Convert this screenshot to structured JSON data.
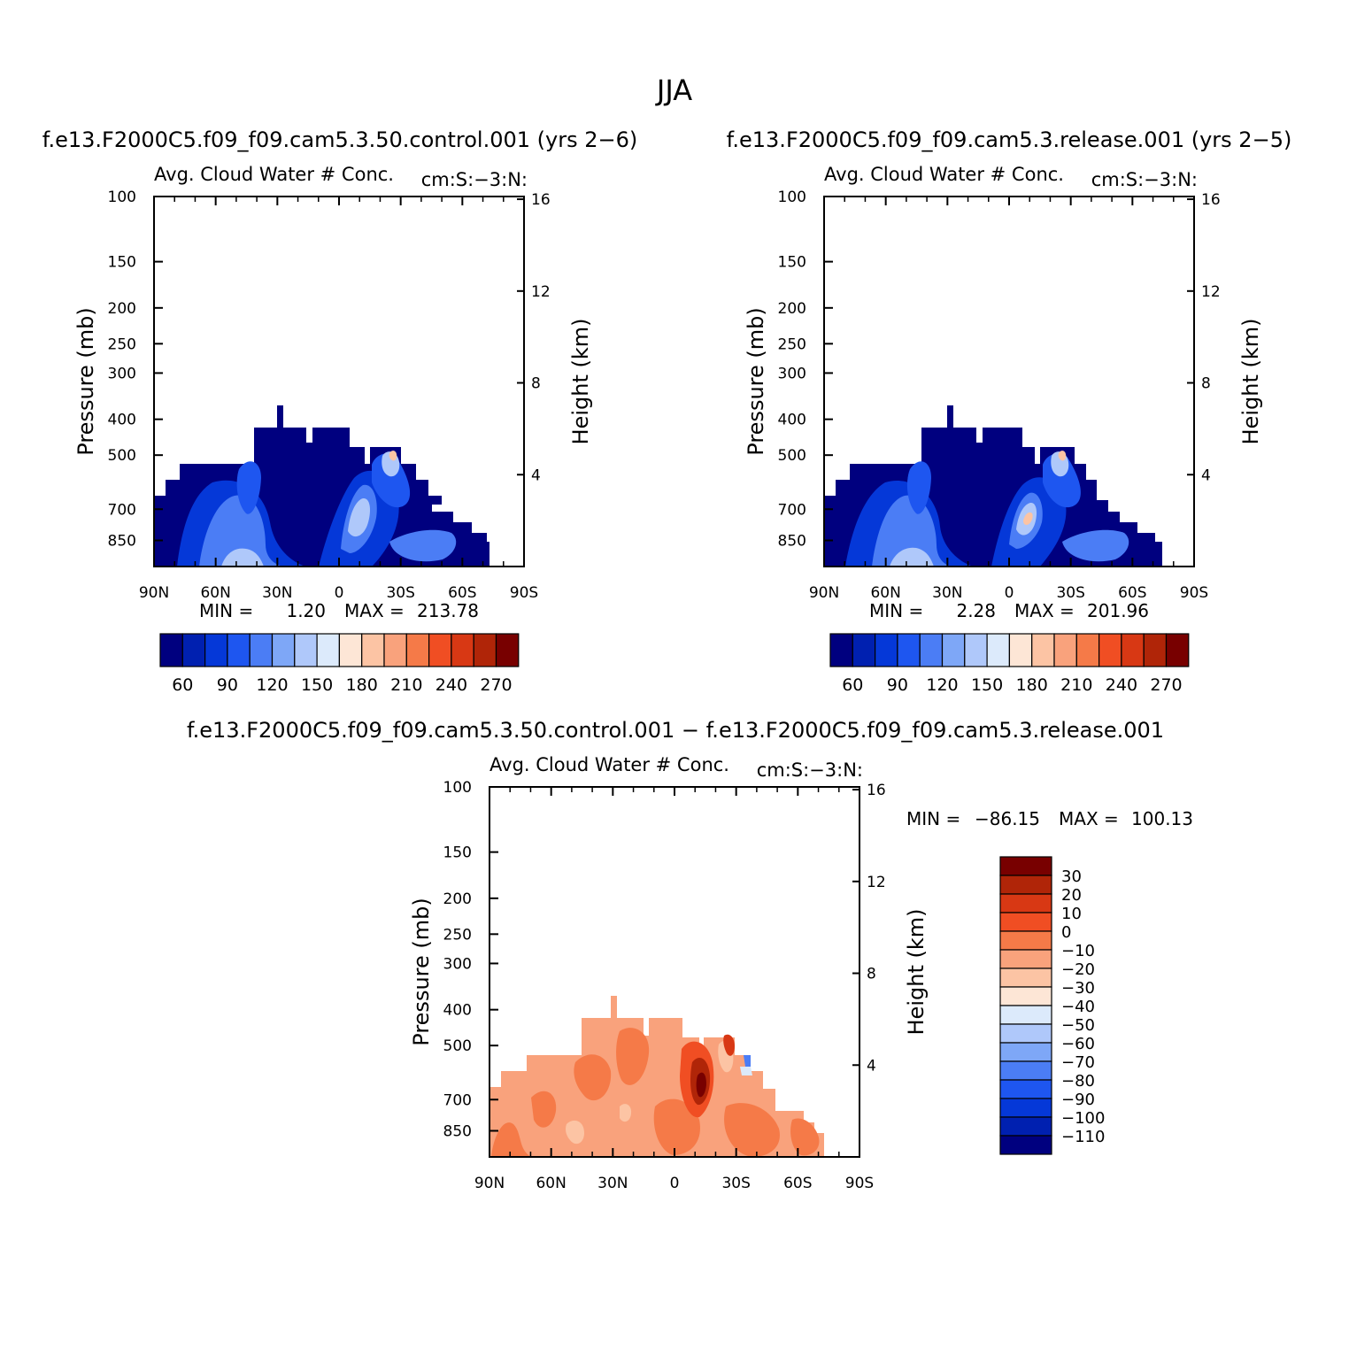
{
  "figure_title": "JJA",
  "panels": [
    {
      "case": "f.e13.F2000C5.f09_f09.cam5.3.50.control.001 (yrs 2−6)",
      "variable": "Avg. Cloud Water # Conc.",
      "units": "cm:S:−3:N:",
      "left_axis_label": "Pressure (mb)",
      "right_axis_label": "Height (km)",
      "stats": {
        "min_label": "MIN =",
        "min": "1.20",
        "max_label": "MAX =",
        "max": "213.78"
      }
    },
    {
      "case": "f.e13.F2000C5.f09_f09.cam5.3.release.001 (yrs 2−5)",
      "variable": "Avg. Cloud Water # Conc.",
      "units": "cm:S:−3:N:",
      "left_axis_label": "Pressure (mb)",
      "right_axis_label": "Height (km)",
      "stats": {
        "min_label": "MIN =",
        "min": "2.28",
        "max_label": "MAX =",
        "max": "201.96"
      }
    },
    {
      "case": "f.e13.F2000C5.f09_f09.cam5.3.50.control.001 − f.e13.F2000C5.f09_f09.cam5.3.release.001",
      "variable": "Avg. Cloud Water # Conc.",
      "units": "cm:S:−3:N:",
      "left_axis_label": "Pressure (mb)",
      "right_axis_label": "Height (km)",
      "stats": {
        "min_label": "MIN =",
        "min": "−86.15",
        "max_label": "MAX =",
        "max": "100.13"
      }
    }
  ],
  "chart_data": [
    {
      "type": "heatmap",
      "panel": "control",
      "x_ticks": [
        "90N",
        "60N",
        "30N",
        "0",
        "30S",
        "60S",
        "90S"
      ],
      "x_values": [
        90,
        60,
        30,
        0,
        -30,
        -60,
        -90
      ],
      "pressure_ticks": [
        100,
        150,
        200,
        250,
        300,
        400,
        500,
        700,
        850
      ],
      "pressure_range": [
        100,
        1000
      ],
      "pressure_scale": "log",
      "height_ticks": [
        16,
        12,
        8,
        4
      ],
      "min": 1.2,
      "max": 213.78,
      "colorbar": {
        "levels": [
          "60",
          "90",
          "120",
          "150",
          "180",
          "210",
          "240",
          "270"
        ],
        "colors": [
          "#00007f",
          "#0020b0",
          "#0538d8",
          "#1e56f0",
          "#4b7df5",
          "#7ea7f7",
          "#afc8fa",
          "#dceafb",
          "#fde6d6",
          "#fcc4a4",
          "#f9a27c",
          "#f57a48",
          "#f04e23",
          "#d83814",
          "#b02508",
          "#780000"
        ]
      }
    },
    {
      "type": "heatmap",
      "panel": "release",
      "x_ticks": [
        "90N",
        "60N",
        "30N",
        "0",
        "30S",
        "60S",
        "90S"
      ],
      "x_values": [
        90,
        60,
        30,
        0,
        -30,
        -60,
        -90
      ],
      "pressure_ticks": [
        100,
        150,
        200,
        250,
        300,
        400,
        500,
        700,
        850
      ],
      "pressure_range": [
        100,
        1000
      ],
      "pressure_scale": "log",
      "height_ticks": [
        16,
        12,
        8,
        4
      ],
      "min": 2.28,
      "max": 201.96,
      "colorbar": {
        "levels": [
          "60",
          "90",
          "120",
          "150",
          "180",
          "210",
          "240",
          "270"
        ],
        "colors": [
          "#00007f",
          "#0020b0",
          "#0538d8",
          "#1e56f0",
          "#4b7df5",
          "#7ea7f7",
          "#afc8fa",
          "#dceafb",
          "#fde6d6",
          "#fcc4a4",
          "#f9a27c",
          "#f57a48",
          "#f04e23",
          "#d83814",
          "#b02508",
          "#780000"
        ]
      }
    },
    {
      "type": "heatmap",
      "panel": "difference",
      "x_ticks": [
        "90N",
        "60N",
        "30N",
        "0",
        "30S",
        "60S",
        "90S"
      ],
      "x_values": [
        90,
        60,
        30,
        0,
        -30,
        -60,
        -90
      ],
      "pressure_ticks": [
        100,
        150,
        200,
        250,
        300,
        400,
        500,
        700,
        850
      ],
      "pressure_range": [
        100,
        1000
      ],
      "pressure_scale": "log",
      "height_ticks": [
        16,
        12,
        8,
        4
      ],
      "min": -86.15,
      "max": 100.13,
      "colorbar": {
        "levels": [
          "30",
          "20",
          "10",
          "0",
          "−10",
          "−20",
          "−30",
          "−40",
          "−50",
          "−60",
          "−70",
          "−80",
          "−90",
          "−100",
          "−110"
        ],
        "colors": [
          "#780000",
          "#b02508",
          "#d83814",
          "#f04e23",
          "#f57a48",
          "#f9a27c",
          "#fcc4a4",
          "#fde6d6",
          "#dceafb",
          "#afc8fa",
          "#7ea7f7",
          "#4b7df5",
          "#1e56f0",
          "#0538d8",
          "#0020b0",
          "#00007f"
        ]
      }
    }
  ]
}
